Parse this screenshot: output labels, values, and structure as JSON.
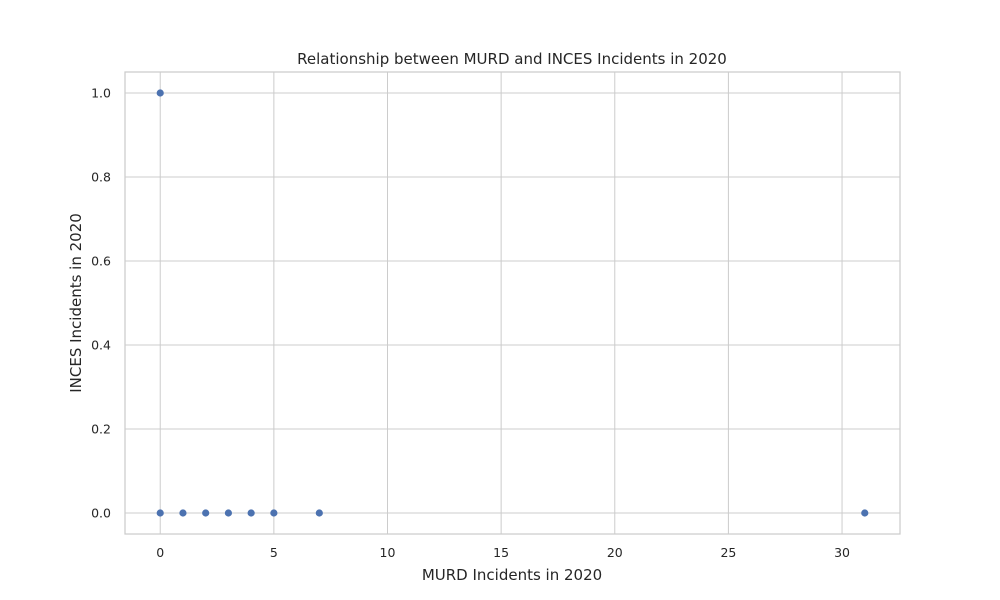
{
  "chart_data": {
    "type": "scatter",
    "title": "Relationship between MURD and INCES Incidents in 2020",
    "xlabel": "MURD Incidents in 2020",
    "ylabel": "INCES Incidents in 2020",
    "xlim": [
      -1.55,
      32.55
    ],
    "ylim": [
      -0.05,
      1.05
    ],
    "xticks": [
      0,
      5,
      10,
      15,
      20,
      25,
      30
    ],
    "yticks": [
      0.0,
      0.2,
      0.4,
      0.6,
      0.8,
      1.0
    ],
    "xtick_labels": [
      "0",
      "5",
      "10",
      "15",
      "20",
      "25",
      "30"
    ],
    "ytick_labels": [
      "0.0",
      "0.2",
      "0.4",
      "0.6",
      "0.8",
      "1.0"
    ],
    "grid": true,
    "point_color": "#4c72b0",
    "points": [
      {
        "x": 0,
        "y": 1
      },
      {
        "x": 0,
        "y": 0
      },
      {
        "x": 1,
        "y": 0
      },
      {
        "x": 2,
        "y": 0
      },
      {
        "x": 3,
        "y": 0
      },
      {
        "x": 4,
        "y": 0
      },
      {
        "x": 5,
        "y": 0
      },
      {
        "x": 7,
        "y": 0
      },
      {
        "x": 31,
        "y": 0
      }
    ]
  }
}
